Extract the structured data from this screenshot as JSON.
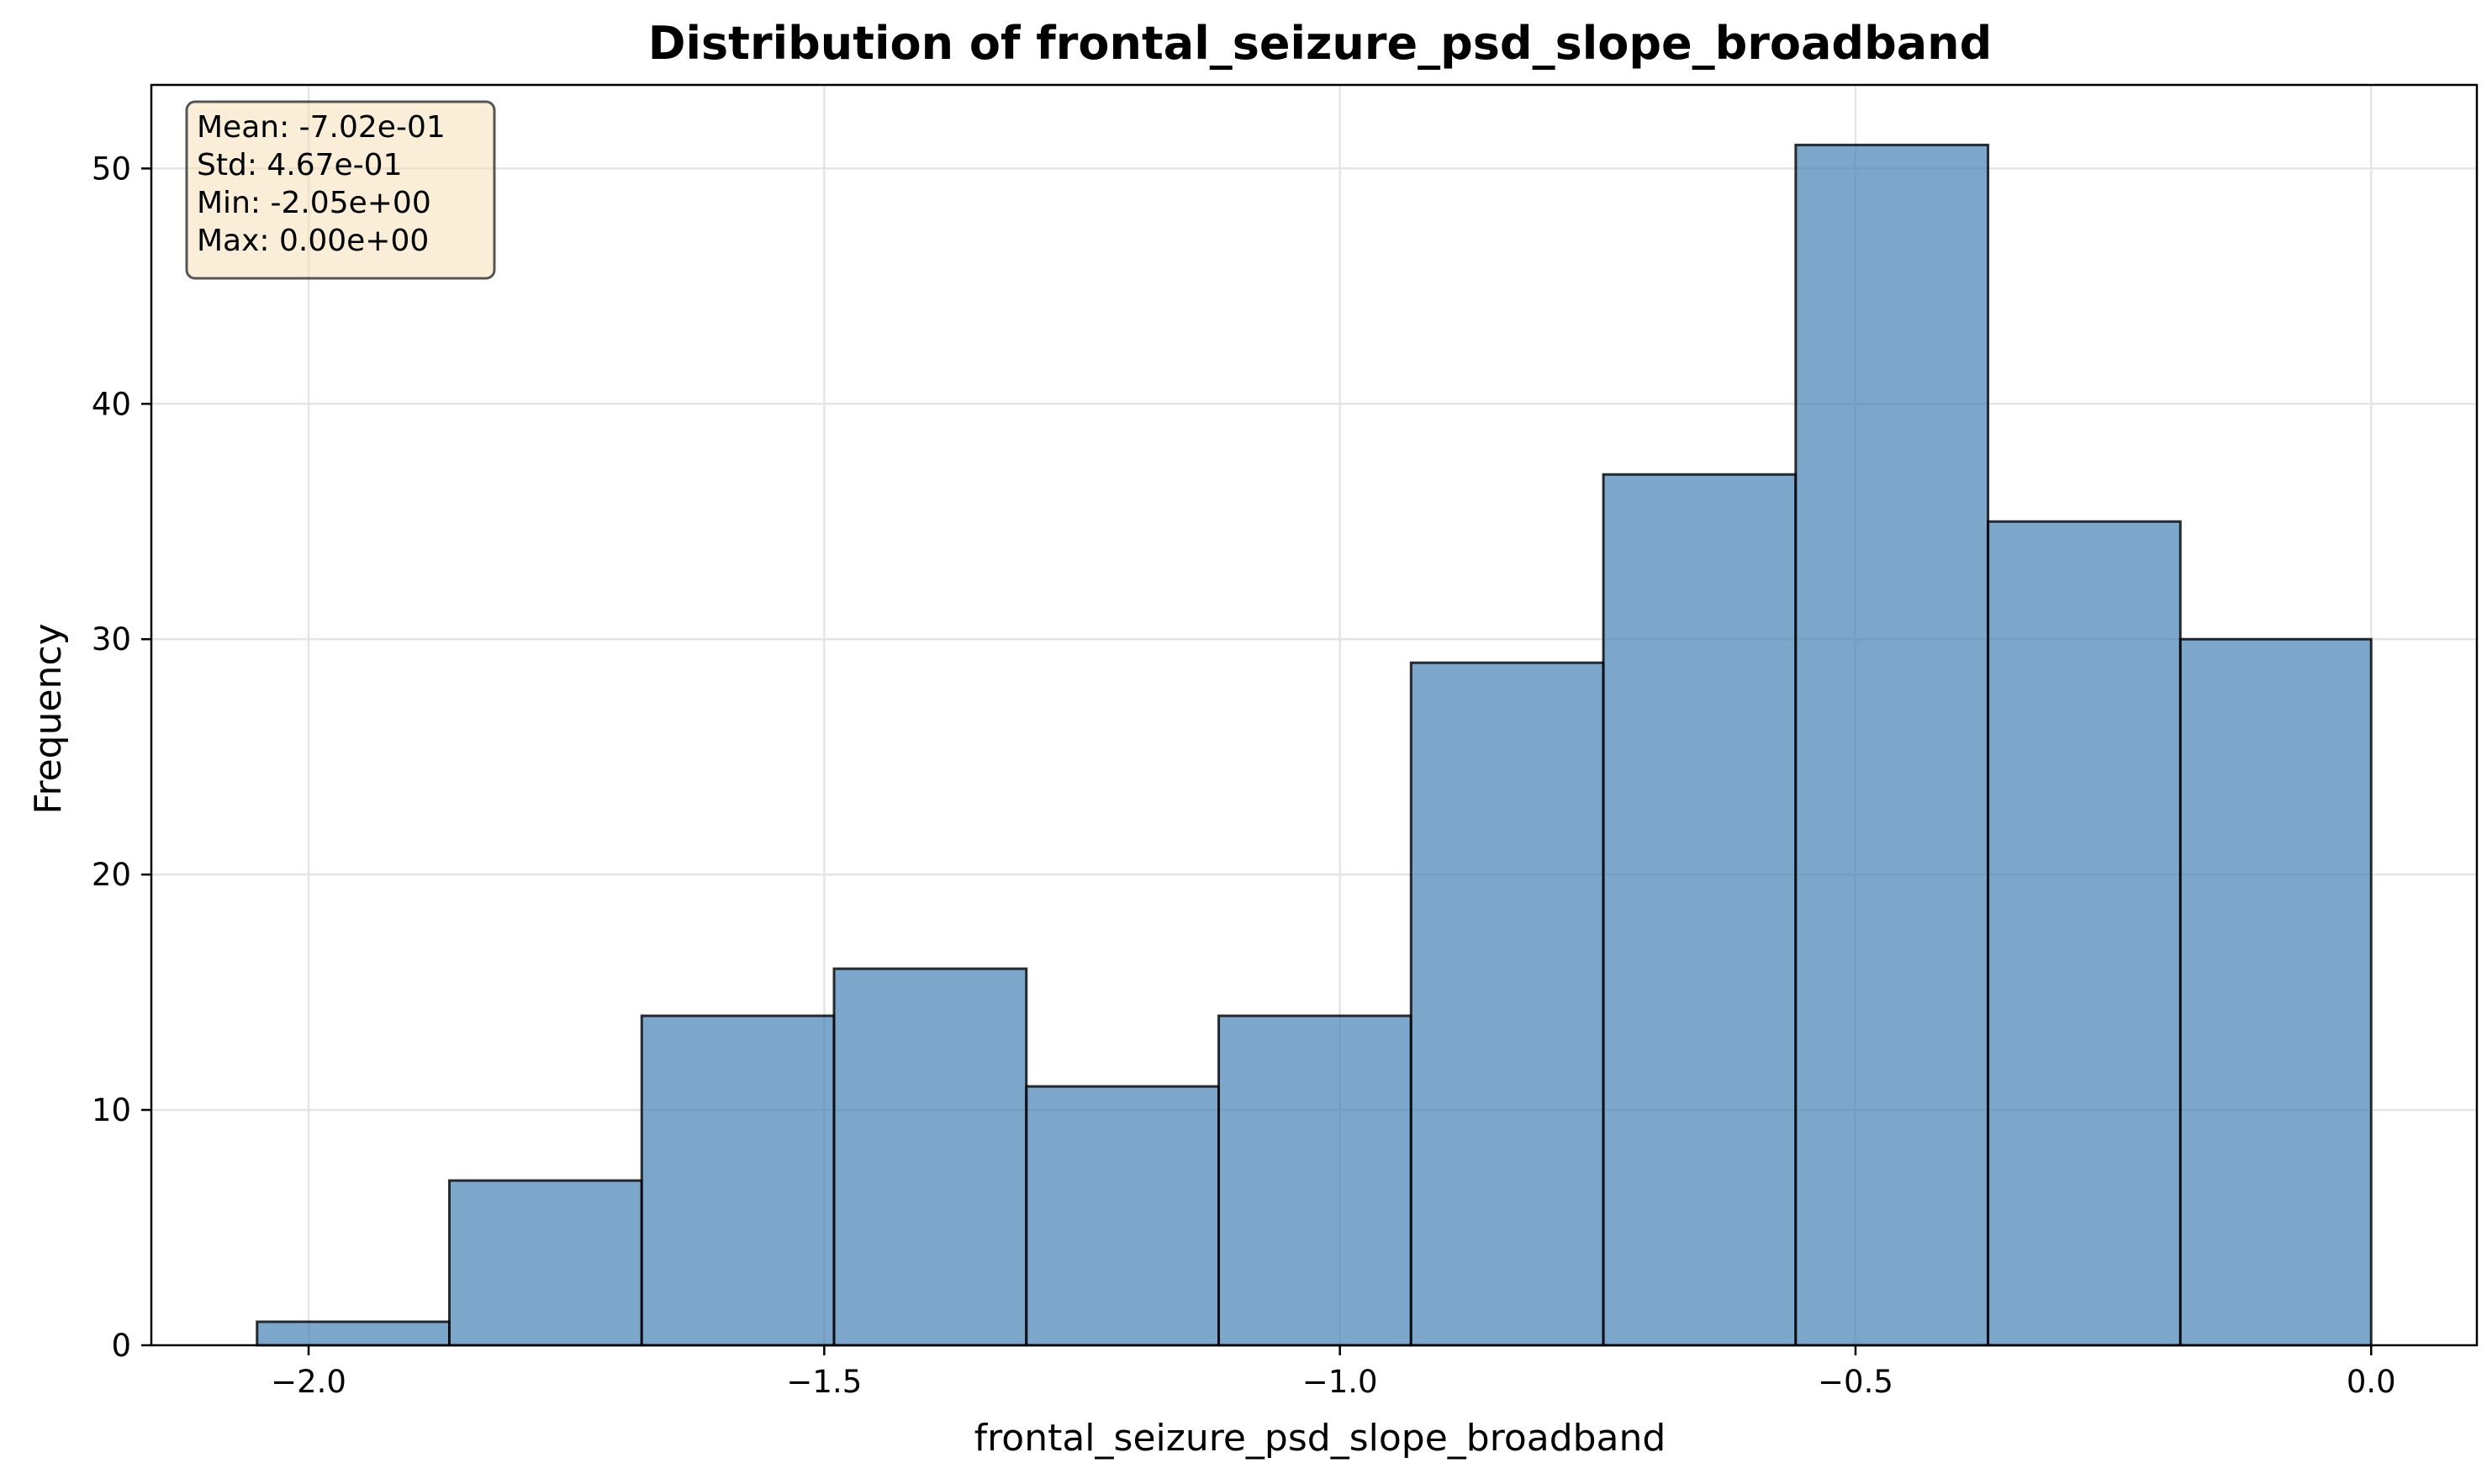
{
  "chart_data": {
    "type": "bar",
    "subtype": "histogram",
    "title": "Distribution of frontal_seizure_psd_slope_broadband",
    "xlabel": "frontal_seizure_psd_slope_broadband",
    "ylabel": "Frequency",
    "bin_edges": [
      -2.05,
      -1.8635,
      -1.677,
      -1.4905,
      -1.304,
      -1.1175,
      -0.931,
      -0.7445,
      -0.558,
      -0.3715,
      -0.185,
      0.0
    ],
    "values": [
      1,
      7,
      14,
      16,
      11,
      14,
      29,
      37,
      51,
      35,
      30
    ],
    "xlim": [
      -2.1525,
      0.1025
    ],
    "ylim": [
      0,
      53.55
    ],
    "xticks": [
      -2.0,
      -1.5,
      -1.0,
      -0.5,
      0.0
    ],
    "xtick_labels": [
      "−2.0",
      "−1.5",
      "−1.0",
      "−0.5",
      "0.0"
    ],
    "yticks": [
      0,
      10,
      20,
      30,
      40,
      50
    ],
    "ytick_labels": [
      "0",
      "10",
      "20",
      "30",
      "40",
      "50"
    ],
    "grid": true,
    "stats_box": {
      "position": "top-left",
      "lines": [
        "Mean: -7.02e-01",
        "Std: 4.67e-01",
        "Min: -2.05e+00",
        "Max: 0.00e+00"
      ]
    },
    "colors": {
      "bar_fill": "#4682b4",
      "bar_edge": "#000000",
      "grid": "#e5e5e5",
      "stats_box_fill": "#f5deb3",
      "stats_box_edge": "#555555"
    }
  }
}
